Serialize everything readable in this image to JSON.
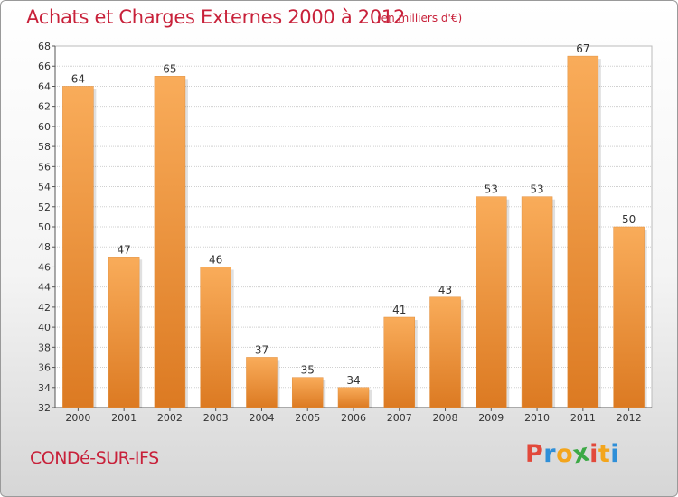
{
  "header": {
    "title": "Achats et Charges Externes 2000 à 2012",
    "unit": "(en milliers d'€)"
  },
  "footer": {
    "commune": "CONDé-SUR-IFS",
    "logo_text": "Proxiti",
    "logo_colors": [
      "#e2493b",
      "#2f8fd8",
      "#f3a51c",
      "#3ca945",
      "#e2493b",
      "#f3a51c",
      "#2f8fd8"
    ]
  },
  "colors": {
    "title": "#c8213a",
    "bar_light": "#f9ac5a",
    "bar_dark": "#dc7a22",
    "grid": "#d0d0d0",
    "axis": "#555555"
  },
  "chart_data": {
    "type": "bar",
    "categories": [
      "2000",
      "2001",
      "2002",
      "2003",
      "2004",
      "2005",
      "2006",
      "2007",
      "2008",
      "2009",
      "2010",
      "2011",
      "2012"
    ],
    "values": [
      64,
      47,
      65,
      46,
      37,
      35,
      34,
      41,
      43,
      53,
      53,
      67,
      50
    ],
    "ylim": [
      32,
      68
    ],
    "ytick_step": 2,
    "grid": true,
    "data_labels": true
  }
}
